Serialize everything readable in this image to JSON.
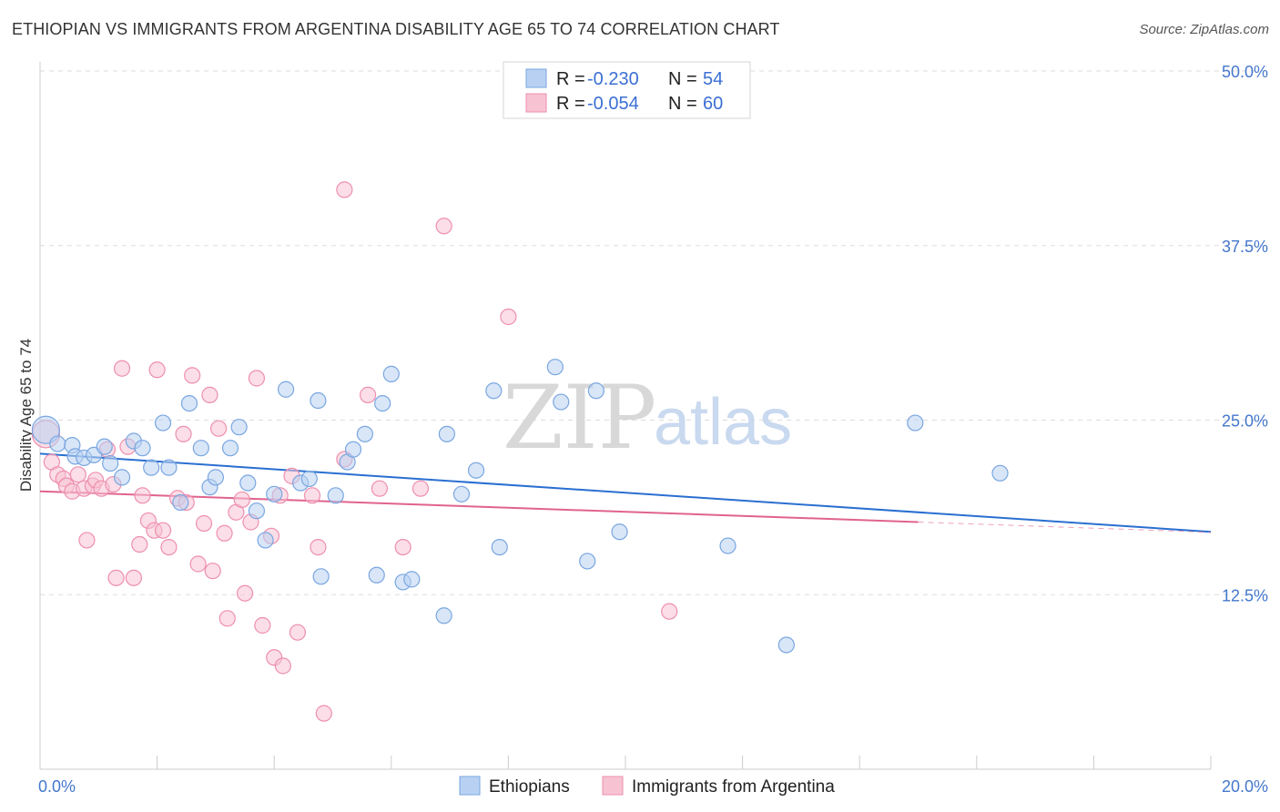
{
  "header": {
    "title": "ETHIOPIAN VS IMMIGRANTS FROM ARGENTINA DISABILITY AGE 65 TO 74 CORRELATION CHART",
    "source": "Source: ZipAtlas.com"
  },
  "watermark": {
    "zip": "ZIP",
    "atlas": "atlas"
  },
  "colors": {
    "blue_fill": "#b8d1f3",
    "blue_stroke": "#7aa6e0",
    "blue_line": "#2a6fd1",
    "pink_fill": "#f7c3d3",
    "pink_stroke": "#ee8fae",
    "pink_line": "#e0638f",
    "axis_text": "#4477cc",
    "grid": "#dddddd"
  },
  "legend": {
    "blue": {
      "r_label": "R =",
      "r_value": "-0.230",
      "n_label": "N =",
      "n_value": "54"
    },
    "pink": {
      "r_label": "R =",
      "r_value": "-0.054",
      "n_label": "N =",
      "n_value": "60"
    }
  },
  "chart_data": {
    "type": "scatter",
    "title": "ETHIOPIAN VS IMMIGRANTS FROM ARGENTINA DISABILITY AGE 65 TO 74 CORRELATION CHART",
    "xlabel": "",
    "ylabel": "Disability Age 65 to 74",
    "xlim": [
      0,
      20
    ],
    "ylim": [
      0,
      50
    ],
    "x_tick_labels": [
      "0.0%",
      "20.0%"
    ],
    "y_ticks": [
      12.5,
      25.0,
      37.5,
      50.0
    ],
    "y_tick_labels": [
      "12.5%",
      "25.0%",
      "37.5%",
      "50.0%"
    ],
    "grid": true,
    "series": [
      {
        "name": "Ethiopians",
        "color": "#b8d1f3",
        "r": -0.23,
        "n": 54,
        "trend": {
          "x": [
            0,
            20
          ],
          "y": [
            22.6,
            17.0
          ]
        },
        "points": [
          [
            0.1,
            24.3
          ],
          [
            0.3,
            23.3
          ],
          [
            0.55,
            23.2
          ],
          [
            0.6,
            22.4
          ],
          [
            0.75,
            22.3
          ],
          [
            0.92,
            22.5
          ],
          [
            1.1,
            23.1
          ],
          [
            1.2,
            21.9
          ],
          [
            1.4,
            20.9
          ],
          [
            1.6,
            23.5
          ],
          [
            1.75,
            23.0
          ],
          [
            1.9,
            21.6
          ],
          [
            2.1,
            24.8
          ],
          [
            2.2,
            21.6
          ],
          [
            2.4,
            19.1
          ],
          [
            2.55,
            26.2
          ],
          [
            2.75,
            23.0
          ],
          [
            2.9,
            20.2
          ],
          [
            3.0,
            20.9
          ],
          [
            3.25,
            23.0
          ],
          [
            3.4,
            24.5
          ],
          [
            3.55,
            20.5
          ],
          [
            3.7,
            18.5
          ],
          [
            3.85,
            16.4
          ],
          [
            4.0,
            19.7
          ],
          [
            4.2,
            27.2
          ],
          [
            4.45,
            20.5
          ],
          [
            4.6,
            20.8
          ],
          [
            4.75,
            26.4
          ],
          [
            4.8,
            13.8
          ],
          [
            5.05,
            19.6
          ],
          [
            5.25,
            22.0
          ],
          [
            5.35,
            22.9
          ],
          [
            5.55,
            24.0
          ],
          [
            5.75,
            13.9
          ],
          [
            5.85,
            26.2
          ],
          [
            6.0,
            28.3
          ],
          [
            6.2,
            13.4
          ],
          [
            6.35,
            13.6
          ],
          [
            6.9,
            11.0
          ],
          [
            6.95,
            24.0
          ],
          [
            7.2,
            19.7
          ],
          [
            7.45,
            21.4
          ],
          [
            7.75,
            27.1
          ],
          [
            7.85,
            15.9
          ],
          [
            8.8,
            28.8
          ],
          [
            8.9,
            26.3
          ],
          [
            9.35,
            14.9
          ],
          [
            9.5,
            27.1
          ],
          [
            9.9,
            17.0
          ],
          [
            11.75,
            16.0
          ],
          [
            12.75,
            8.9
          ],
          [
            14.95,
            24.8
          ],
          [
            16.4,
            21.2
          ]
        ]
      },
      {
        "name": "Immigrants from Argentina",
        "color": "#f7c3d3",
        "r": -0.054,
        "n": 60,
        "trend": {
          "x": [
            0,
            15
          ],
          "y": [
            19.9,
            17.7
          ]
        },
        "points": [
          [
            0.1,
            24.0
          ],
          [
            0.2,
            22.0
          ],
          [
            0.3,
            21.1
          ],
          [
            0.4,
            20.8
          ],
          [
            0.45,
            20.3
          ],
          [
            0.55,
            19.9
          ],
          [
            0.65,
            21.1
          ],
          [
            0.75,
            20.1
          ],
          [
            0.8,
            16.4
          ],
          [
            0.9,
            20.3
          ],
          [
            0.95,
            20.7
          ],
          [
            1.05,
            20.1
          ],
          [
            1.15,
            22.9
          ],
          [
            1.25,
            20.4
          ],
          [
            1.3,
            13.7
          ],
          [
            1.4,
            28.7
          ],
          [
            1.5,
            23.1
          ],
          [
            1.6,
            13.7
          ],
          [
            1.7,
            16.1
          ],
          [
            1.75,
            19.6
          ],
          [
            1.85,
            17.8
          ],
          [
            1.95,
            17.1
          ],
          [
            2.0,
            28.6
          ],
          [
            2.1,
            17.1
          ],
          [
            2.2,
            15.9
          ],
          [
            2.35,
            19.4
          ],
          [
            2.45,
            24.0
          ],
          [
            2.5,
            19.1
          ],
          [
            2.6,
            28.2
          ],
          [
            2.7,
            14.7
          ],
          [
            2.8,
            17.6
          ],
          [
            2.9,
            26.8
          ],
          [
            2.95,
            14.2
          ],
          [
            3.05,
            24.4
          ],
          [
            3.15,
            16.9
          ],
          [
            3.2,
            10.8
          ],
          [
            3.35,
            18.4
          ],
          [
            3.45,
            19.3
          ],
          [
            3.5,
            12.6
          ],
          [
            3.6,
            17.7
          ],
          [
            3.7,
            28.0
          ],
          [
            3.8,
            10.3
          ],
          [
            3.95,
            16.7
          ],
          [
            4.0,
            8.0
          ],
          [
            4.1,
            19.6
          ],
          [
            4.15,
            7.4
          ],
          [
            4.3,
            21.0
          ],
          [
            4.4,
            9.8
          ],
          [
            4.65,
            19.6
          ],
          [
            4.75,
            15.9
          ],
          [
            4.85,
            4.0
          ],
          [
            5.2,
            22.2
          ],
          [
            5.2,
            41.5
          ],
          [
            5.6,
            26.8
          ],
          [
            5.8,
            20.1
          ],
          [
            6.2,
            15.9
          ],
          [
            6.5,
            20.1
          ],
          [
            6.9,
            38.9
          ],
          [
            8.0,
            32.4
          ],
          [
            10.75,
            11.3
          ]
        ]
      }
    ],
    "bottom_legend": [
      "Ethiopians",
      "Immigrants from Argentina"
    ]
  }
}
